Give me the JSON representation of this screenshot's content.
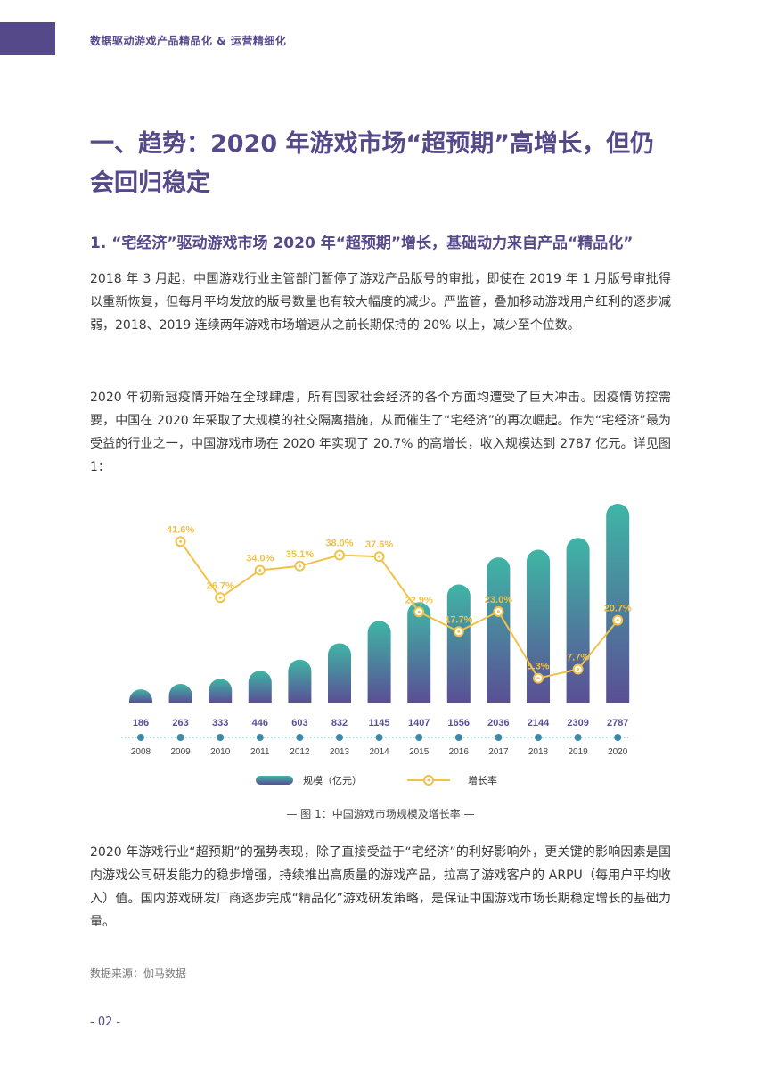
{
  "header": {
    "title": "数据驱动游戏产品精品化 & 运营精细化"
  },
  "page_title": "一、趋势：2020 年游戏市场“超预期”高增长，但仍会回归稳定",
  "section_heading": "1. “宅经济”驱动游戏市场 2020 年“超预期”增长，基础动力来自产品“精品化”",
  "paragraphs": [
    "2018 年 3 月起，中国游戏行业主管部门暂停了游戏产品版号的审批，即使在 2019 年 1 月版号审批得以重新恢复，但每月平均发放的版号数量也有较大幅度的减少。严监管，叠加移动游戏用户红利的逐步减弱，2018、2019 连续两年游戏市场增速从之前长期保持的 20% 以上，减少至个位数。",
    "2020 年初新冠疫情开始在全球肆虐，所有国家社会经济的各个方面均遭受了巨大冲击。因疫情防控需要，中国在 2020 年采取了大规模的社交隔离措施，从而催生了“宅经济”的再次崛起。作为“宅经济”最为受益的行业之一，中国游戏市场在 2020 年实现了 20.7% 的高增长，收入规模达到 2787 亿元。详见图 1：",
    "2020 年游戏行业“超预期”的强势表现，除了直接受益于“宅经济”的利好影响外，更关键的影响因素是国内游戏公司研发能力的稳步增强，持续推出高质量的游戏产品，拉高了游戏客户的 ARPU（每用户平均收入）值。国内游戏研发厂商逐步完成“精品化”游戏研发策略，是保证中国游戏市场长期稳定增长的基础力量。"
  ],
  "chart_data": {
    "type": "bar",
    "categories": [
      "2008",
      "2009",
      "2010",
      "2011",
      "2012",
      "2013",
      "2014",
      "2015",
      "2016",
      "2017",
      "2018",
      "2019",
      "2020"
    ],
    "series": [
      {
        "name": "规模（亿元）",
        "type": "bar",
        "values": [
          186,
          263,
          333,
          446,
          603,
          832,
          1145,
          1407,
          1656,
          2036,
          2144,
          2309,
          2787
        ]
      },
      {
        "name": "增长率",
        "type": "line",
        "values": [
          null,
          41.6,
          26.7,
          34.0,
          35.1,
          38.0,
          37.6,
          22.9,
          17.7,
          23.0,
          5.3,
          7.7,
          20.7
        ],
        "labels": [
          "",
          "41.6%",
          "26.7%",
          "34.0%",
          "35.1%",
          "38.0%",
          "37.6%",
          "22.9%",
          "17.7%",
          "23.0%",
          "5.3%",
          "7.7%",
          "20.7%"
        ]
      }
    ],
    "ylim_bar": [
      0,
      2900
    ],
    "ylim_line": [
      0,
      45
    ],
    "legend": [
      "规模（亿元）",
      "增长率"
    ],
    "legend_position": "bottom",
    "colors": {
      "bar_top": "#3fb5a5",
      "bar_bottom": "#5a4f95",
      "line": "#f0c24a",
      "axis": "#3fb5a5"
    }
  },
  "caption": "— 图 1：中国游戏市场规模及增长率 —",
  "source": "数据来源：伽马数据",
  "page_number": "- 02 -"
}
